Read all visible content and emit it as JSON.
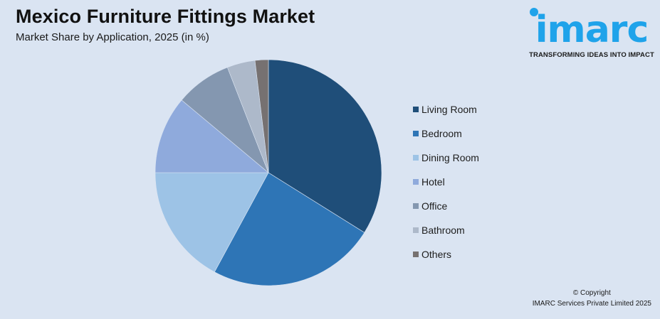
{
  "header": {
    "title": "Mexico Furniture Fittings Market",
    "subtitle": "Market Share by Application, 2025 (in %)"
  },
  "logo": {
    "word": "imarc",
    "tagline": "TRANSFORMING IDEAS INTO IMPACT",
    "color": "#1fa3ea"
  },
  "footer": {
    "line1": "© Copyright",
    "line2": "IMARC Services Private Limited 2025"
  },
  "chart_data": {
    "type": "pie",
    "title": "Mexico Furniture Fittings Market",
    "subtitle": "Market Share by Application, 2025 (in %)",
    "categories": [
      "Living Room",
      "Bedroom",
      "Dining Room",
      "Hotel",
      "Office",
      "Bathroom",
      "Others"
    ],
    "values": [
      33.9,
      24.0,
      17.1,
      11.1,
      8.0,
      4.0,
      1.9
    ],
    "colors": [
      "#1f4e79",
      "#2e75b6",
      "#9dc3e6",
      "#8faadc",
      "#8497b0",
      "#adb9ca",
      "#767171"
    ],
    "start_angle_deg": 0,
    "direction": "clockwise",
    "legend_position": "right",
    "data_labels": false
  },
  "legend": {
    "items": [
      {
        "label": "Living Room",
        "color": "#1f4e79"
      },
      {
        "label": "Bedroom",
        "color": "#2e75b6"
      },
      {
        "label": "Dining Room",
        "color": "#9dc3e6"
      },
      {
        "label": "Hotel",
        "color": "#8faadc"
      },
      {
        "label": "Office",
        "color": "#8497b0"
      },
      {
        "label": "Bathroom",
        "color": "#adb9ca"
      },
      {
        "label": "Others",
        "color": "#767171"
      }
    ]
  }
}
